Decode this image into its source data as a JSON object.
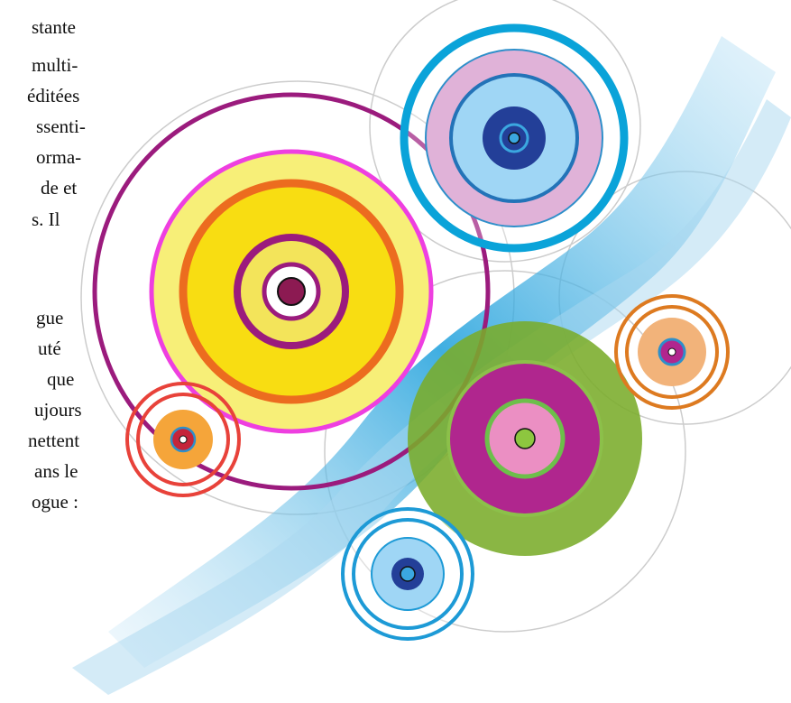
{
  "text_block_1": [
    "stante",
    "multi-",
    "éditées",
    "ssenti-",
    "orma-",
    "de et",
    "s. Il"
  ],
  "text_block_2": [
    "gue",
    "uté",
    "que",
    "ujours",
    "nettent",
    "ans le",
    "ogue :"
  ]
}
